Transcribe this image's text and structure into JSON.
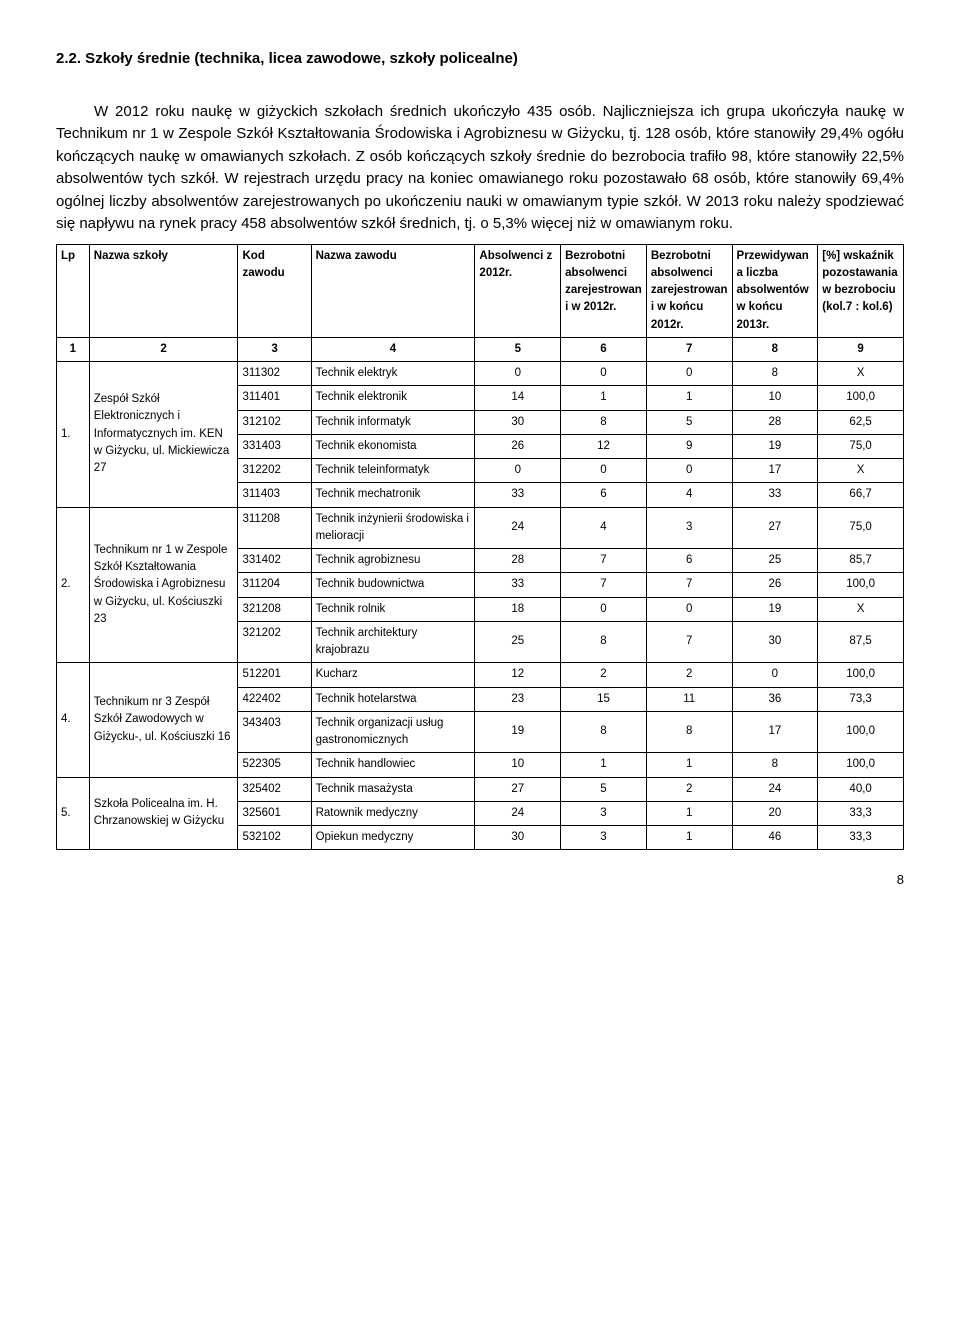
{
  "heading": "2.2. Szkoły średnie  (technika, licea zawodowe, szkoły policealne)",
  "para1": "W 2012 roku naukę w giżyckich szkołach średnich ukończyło 435 osób. Najliczniejsza ich grupa ukończyła naukę w Technikum nr 1 w Zespole Szkół Kształtowania Środowiska i Agrobiznesu w Giżycku, tj. 128 osób, które stanowiły 29,4% ogółu kończących naukę w omawianych szkołach. Z osób kończących szkoły średnie do bezrobocia trafiło 98, które stanowiły 22,5% absolwentów tych szkół.  W rejestrach urzędu pracy na koniec omawianego roku pozostawało 68 osób, które stanowiły 69,4% ogólnej liczby absolwentów zarejestrowanych po ukończeniu nauki w omawianym typie szkół. W 2013 roku należy spodziewać się napływu na rynek pracy 458 absolwentów szkół średnich, tj. o 5,3% więcej niż w omawianym roku.",
  "headers": {
    "lp": "Lp",
    "szkola": "Nazwa szkoły",
    "kod": "Kod zawodu",
    "zawod": "Nazwa zawodu",
    "absol": "Absolwenci z 2012r.",
    "bezro_rej": "Bezrobotni absolwenci zarejestrowani w 2012r.",
    "bezro_koncu": "Bezrobotni absolwenci zarejestrowani w końcu 2012r.",
    "przew": "Przewidywana liczba absolwentów w końcu 2013r.",
    "wsk": "[%] wskaźnik pozostawania w bezrobociu (kol.7 : kol.6)"
  },
  "numrow": [
    "1",
    "2",
    "3",
    "4",
    "5",
    "6",
    "7",
    "8",
    "9"
  ],
  "schools": [
    {
      "lp": "1.",
      "name": "Zespół Szkół Elektronicznych i Informatycznych im. KEN w Giżycku, ul. Mickiewicza 27",
      "rows": [
        {
          "kod": "311302",
          "zawod": "Technik elektryk",
          "a": "0",
          "b": "0",
          "c": "0",
          "d": "8",
          "e": "X"
        },
        {
          "kod": "311401",
          "zawod": "Technik elektronik",
          "a": "14",
          "b": "1",
          "c": "1",
          "d": "10",
          "e": "100,0"
        },
        {
          "kod": "312102",
          "zawod": "Technik informatyk",
          "a": "30",
          "b": "8",
          "c": "5",
          "d": "28",
          "e": "62,5"
        },
        {
          "kod": "331403",
          "zawod": "Technik ekonomista",
          "a": "26",
          "b": "12",
          "c": "9",
          "d": "19",
          "e": "75,0"
        },
        {
          "kod": "312202",
          "zawod": "Technik teleinformatyk",
          "a": "0",
          "b": "0",
          "c": "0",
          "d": "17",
          "e": "X"
        },
        {
          "kod": "311403",
          "zawod": "Technik mechatronik",
          "a": "33",
          "b": "6",
          "c": "4",
          "d": "33",
          "e": "66,7"
        }
      ]
    },
    {
      "lp": "2.",
      "name": "Technikum nr 1 w Zespole Szkół Kształtowania Środowiska i Agrobiznesu w Giżycku, ul. Kościuszki 23",
      "rows": [
        {
          "kod": "311208",
          "zawod": "Technik inżynierii środowiska i melioracji",
          "a": "24",
          "b": "4",
          "c": "3",
          "d": "27",
          "e": "75,0"
        },
        {
          "kod": "331402",
          "zawod": "Technik agrobiznesu",
          "a": "28",
          "b": "7",
          "c": "6",
          "d": "25",
          "e": "85,7"
        },
        {
          "kod": "311204",
          "zawod": "Technik budownictwa",
          "a": "33",
          "b": "7",
          "c": "7",
          "d": "26",
          "e": "100,0"
        },
        {
          "kod": "321208",
          "zawod": "Technik rolnik",
          "a": "18",
          "b": "0",
          "c": "0",
          "d": "19",
          "e": "X"
        },
        {
          "kod": "321202",
          "zawod": "Technik architektury krajobrazu",
          "a": "25",
          "b": "8",
          "c": "7",
          "d": "30",
          "e": "87,5"
        }
      ]
    },
    {
      "lp": "4.",
      "name": "Technikum nr 3 Zespół Szkół Zawodowych w Giżycku-, ul. Kościuszki 16",
      "rows": [
        {
          "kod": "512201",
          "zawod": "Kucharz",
          "a": "12",
          "b": "2",
          "c": "2",
          "d": "0",
          "e": "100,0"
        },
        {
          "kod": "422402",
          "zawod": "Technik hotelarstwa",
          "a": "23",
          "b": "15",
          "c": "11",
          "d": "36",
          "e": "73,3"
        },
        {
          "kod": "343403",
          "zawod": "Technik organizacji usług gastronomicznych",
          "a": "19",
          "b": "8",
          "c": "8",
          "d": "17",
          "e": "100,0"
        },
        {
          "kod": "522305",
          "zawod": "Technik handlowiec",
          "a": "10",
          "b": "1",
          "c": "1",
          "d": "8",
          "e": "100,0"
        }
      ]
    },
    {
      "lp": "5.",
      "name": "Szkoła Policealna im. H. Chrzanowskiej w Giżycku",
      "rows": [
        {
          "kod": "325402",
          "zawod": "Technik masażysta",
          "a": "27",
          "b": "5",
          "c": "2",
          "d": "24",
          "e": "40,0"
        },
        {
          "kod": "325601",
          "zawod": "Ratownik medyczny",
          "a": "24",
          "b": "3",
          "c": "1",
          "d": "20",
          "e": "33,3"
        },
        {
          "kod": "532102",
          "zawod": "Opiekun medyczny",
          "a": "30",
          "b": "3",
          "c": "1",
          "d": "46",
          "e": "33,3"
        }
      ]
    }
  ],
  "page_number": "8"
}
